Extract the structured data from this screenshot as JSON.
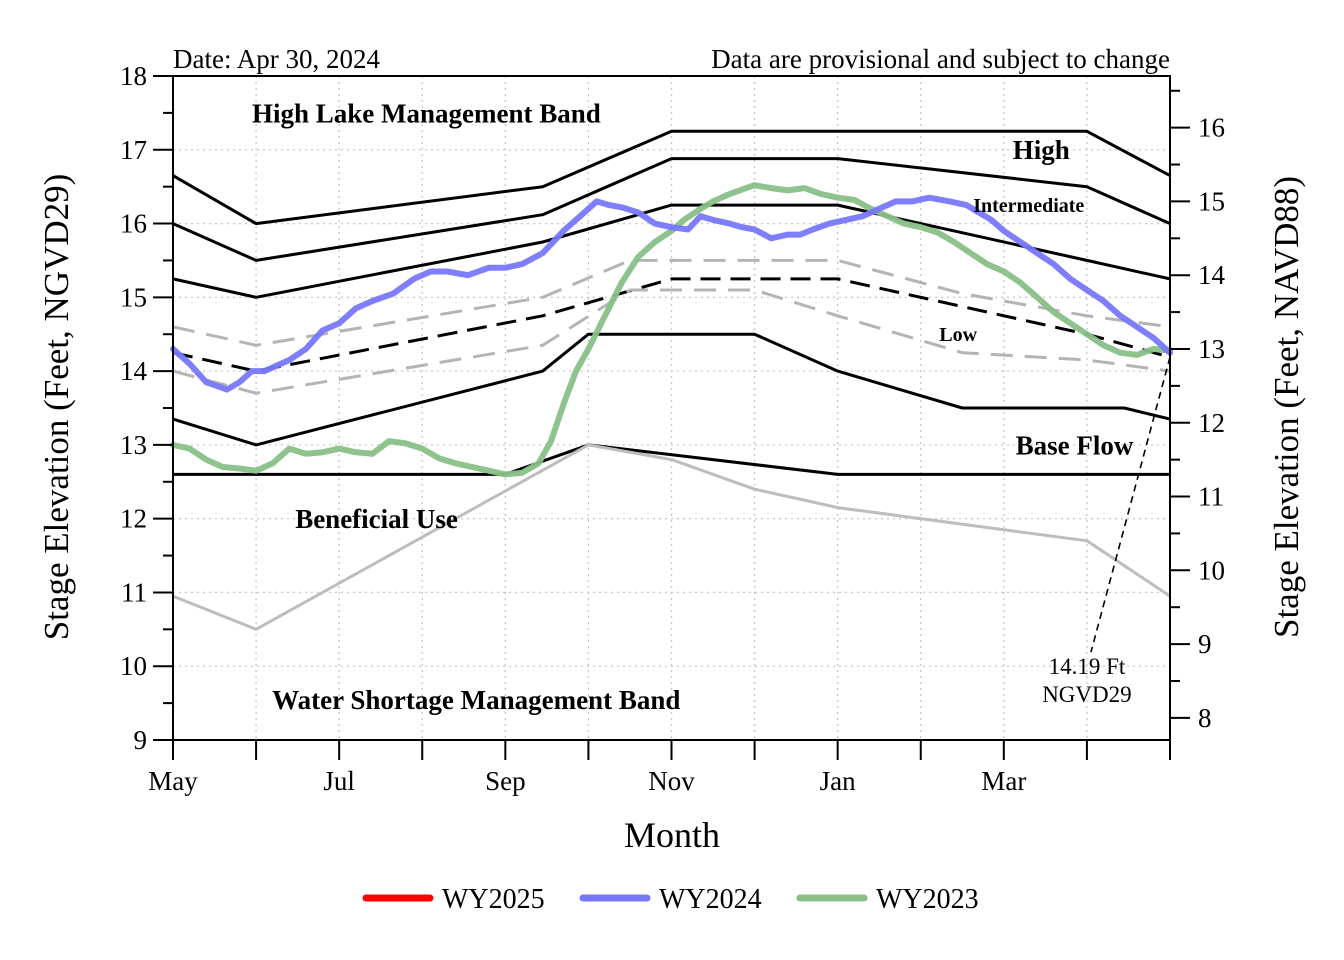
{
  "chart_data": {
    "type": "line",
    "date_label": "Date: Apr 30, 2024",
    "disclaimer": "Data are provisional and subject to change",
    "xlabel": "Month",
    "ylabel_left": "Stage Elevation (Feet, NGVD29)",
    "ylabel_right": "Stage Elevation (Feet, NAVD88)",
    "x_range": [
      0,
      12
    ],
    "ylim_left": [
      9,
      18
    ],
    "yticks_left": [
      "9",
      "10",
      "11",
      "12",
      "13",
      "14",
      "15",
      "16",
      "17",
      "18"
    ],
    "ylim_right": [
      7.7,
      16.7
    ],
    "yticks_right": [
      "8",
      "9",
      "10",
      "11",
      "12",
      "13",
      "14",
      "15",
      "16"
    ],
    "yticks_right_values": [
      8,
      9,
      10,
      11,
      12,
      13,
      14,
      15,
      16
    ],
    "x_tick_labels": [
      {
        "label": "May",
        "x": 0
      },
      {
        "label": "Jul",
        "x": 2
      },
      {
        "label": "Sep",
        "x": 4
      },
      {
        "label": "Nov",
        "x": 6
      },
      {
        "label": "Jan",
        "x": 8
      },
      {
        "label": "Mar",
        "x": 10
      }
    ],
    "grid": true,
    "colors": {
      "wy2025": "#ff0000",
      "wy2024": "#7777ff",
      "wy2023": "#88c088",
      "band": "#000000",
      "dashed_gray": "#b4b4b4",
      "low_gray": "#bdbdbd",
      "disclaimer": "#ff0000"
    },
    "band_lines": [
      {
        "key": "high_top",
        "style": "solid",
        "x": [
          0,
          1,
          4.45,
          6,
          8,
          11,
          12
        ],
        "y": [
          16.65,
          16.0,
          16.5,
          17.25,
          17.25,
          17.25,
          16.65
        ]
      },
      {
        "key": "high_int",
        "style": "solid",
        "x": [
          0,
          1,
          4.45,
          6,
          8,
          11,
          12
        ],
        "y": [
          16.0,
          15.5,
          16.12,
          16.88,
          16.88,
          16.5,
          16.0
        ]
      },
      {
        "key": "int_low",
        "style": "solid",
        "x": [
          0,
          1,
          4.45,
          6,
          8,
          11,
          12
        ],
        "y": [
          15.25,
          15.0,
          15.75,
          16.25,
          16.25,
          15.5,
          15.25
        ]
      },
      {
        "key": "low_base",
        "style": "solid",
        "x": [
          0,
          1,
          4.45,
          5,
          7,
          8,
          9.5,
          11.45,
          12
        ],
        "y": [
          13.35,
          13.0,
          14.0,
          14.5,
          14.5,
          14.0,
          13.5,
          13.5,
          13.35
        ]
      },
      {
        "key": "beneficial",
        "style": "solid",
        "x": [
          0,
          4,
          5,
          8,
          12
        ],
        "y": [
          12.6,
          12.6,
          13.0,
          12.6,
          12.6
        ]
      },
      {
        "key": "lake_mid",
        "style": "dashed",
        "x": [
          0,
          1,
          4.45,
          6,
          8,
          11,
          12
        ],
        "y": [
          14.25,
          14.0,
          14.75,
          15.25,
          15.25,
          14.5,
          14.19
        ]
      },
      {
        "key": "gray_upper",
        "style": "gray_dashed",
        "x": [
          0,
          1,
          4.45,
          5.5,
          7,
          8,
          9.5,
          11,
          12
        ],
        "y": [
          14.6,
          14.35,
          15.0,
          15.5,
          15.5,
          15.5,
          15.05,
          14.75,
          14.6
        ]
      },
      {
        "key": "gray_lower",
        "style": "gray_dashed",
        "x": [
          0,
          1,
          4.45,
          5.5,
          7,
          8,
          9.5,
          11,
          12
        ],
        "y": [
          14.0,
          13.7,
          14.35,
          15.1,
          15.1,
          14.75,
          14.25,
          14.15,
          14.0
        ]
      },
      {
        "key": "low_sense",
        "style": "gray_solid",
        "x": [
          0,
          1,
          5,
          6,
          7,
          8,
          11,
          12
        ],
        "y": [
          10.95,
          10.5,
          13.0,
          12.8,
          12.4,
          12.15,
          11.7,
          10.95
        ]
      }
    ],
    "series": [
      {
        "name": "WY2025",
        "x": [],
        "values": []
      },
      {
        "name": "WY2024",
        "x": [
          0,
          0.2,
          0.4,
          0.65,
          0.8,
          0.95,
          1.1,
          1.4,
          1.6,
          1.8,
          2.0,
          2.2,
          2.4,
          2.65,
          2.9,
          3.1,
          3.3,
          3.55,
          3.8,
          4.0,
          4.2,
          4.45,
          4.7,
          4.9,
          5.1,
          5.25,
          5.4,
          5.6,
          5.8,
          6.0,
          6.2,
          6.35,
          6.5,
          6.7,
          6.85,
          7.0,
          7.2,
          7.4,
          7.55,
          7.7,
          7.9,
          8.1,
          8.3,
          8.5,
          8.7,
          8.9,
          9.1,
          9.35,
          9.55,
          9.7,
          9.85,
          10.0,
          10.2,
          10.4,
          10.6,
          10.8,
          11.0,
          11.2,
          11.4,
          11.6,
          11.8,
          12.0
        ],
        "values": [
          14.3,
          14.1,
          13.85,
          13.75,
          13.85,
          14.0,
          14.0,
          14.15,
          14.3,
          14.55,
          14.65,
          14.85,
          14.95,
          15.05,
          15.25,
          15.35,
          15.35,
          15.3,
          15.4,
          15.4,
          15.45,
          15.6,
          15.9,
          16.1,
          16.3,
          16.25,
          16.22,
          16.15,
          16.0,
          15.95,
          15.92,
          16.1,
          16.05,
          16.0,
          15.95,
          15.92,
          15.8,
          15.85,
          15.85,
          15.92,
          16.0,
          16.05,
          16.1,
          16.2,
          16.3,
          16.3,
          16.35,
          16.3,
          16.25,
          16.15,
          16.05,
          15.9,
          15.75,
          15.6,
          15.45,
          15.25,
          15.1,
          14.95,
          14.75,
          14.6,
          14.45,
          14.25
        ]
      },
      {
        "name": "WY2023",
        "x": [
          0,
          0.2,
          0.4,
          0.6,
          0.8,
          1.0,
          1.2,
          1.4,
          1.6,
          1.8,
          2.0,
          2.2,
          2.4,
          2.6,
          2.8,
          3.0,
          3.2,
          3.4,
          3.6,
          3.8,
          4.0,
          4.2,
          4.4,
          4.55,
          4.7,
          4.85,
          5.0,
          5.2,
          5.4,
          5.6,
          5.8,
          6.0,
          6.15,
          6.35,
          6.5,
          6.7,
          6.9,
          7.0,
          7.2,
          7.4,
          7.6,
          7.8,
          8.0,
          8.2,
          8.4,
          8.6,
          8.8,
          9.0,
          9.2,
          9.4,
          9.6,
          9.8,
          10.0,
          10.2,
          10.4,
          10.6,
          10.8,
          11.0,
          11.2,
          11.4,
          11.6,
          11.8,
          12.0
        ],
        "values": [
          13.0,
          12.95,
          12.8,
          12.7,
          12.68,
          12.65,
          12.75,
          12.95,
          12.88,
          12.9,
          12.95,
          12.9,
          12.88,
          13.05,
          13.02,
          12.95,
          12.82,
          12.75,
          12.7,
          12.65,
          12.6,
          12.62,
          12.75,
          13.05,
          13.55,
          14.0,
          14.3,
          14.75,
          15.2,
          15.55,
          15.75,
          15.9,
          16.05,
          16.2,
          16.3,
          16.4,
          16.48,
          16.52,
          16.48,
          16.45,
          16.48,
          16.4,
          16.35,
          16.32,
          16.2,
          16.1,
          16.0,
          15.95,
          15.88,
          15.75,
          15.6,
          15.45,
          15.35,
          15.2,
          15.0,
          14.8,
          14.65,
          14.5,
          14.35,
          14.25,
          14.22,
          14.3,
          14.28
        ]
      }
    ],
    "band_labels": [
      {
        "key": "high_lake",
        "text": "High Lake Management Band",
        "x": 3.05,
        "y": 17.5,
        "size": 27
      },
      {
        "key": "high",
        "text": "High",
        "x": 10.45,
        "y": 17.0,
        "size": 27
      },
      {
        "key": "intermediate",
        "text": "Intermediate",
        "x": 10.3,
        "y": 16.25,
        "size": 20
      },
      {
        "key": "low",
        "text": "Low",
        "x": 9.45,
        "y": 14.5,
        "size": 20
      },
      {
        "key": "base_flow",
        "text": "Base Flow",
        "x": 10.85,
        "y": 13.0,
        "size": 27
      },
      {
        "key": "beneficial_use",
        "text": "Beneficial Use",
        "x": 2.45,
        "y": 12.0,
        "size": 27
      },
      {
        "key": "water_shortage",
        "text": "Water Shortage Management Band",
        "x": 3.65,
        "y": 9.55,
        "size": 27
      }
    ],
    "annotation": {
      "text_line1": "14.19 Ft",
      "text_line2": "NGVD29",
      "value": 14.19,
      "x": 12,
      "label_x": 11.0,
      "label_y": 10.0
    },
    "legend": {
      "position": "bottom"
    }
  }
}
